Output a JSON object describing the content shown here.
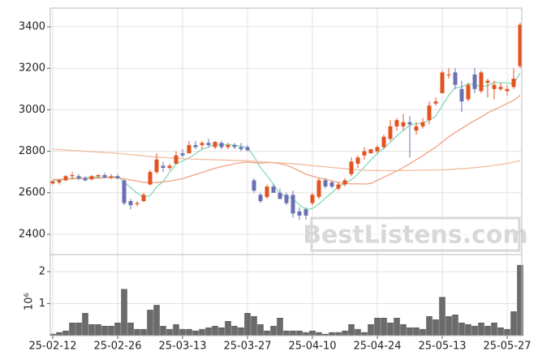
{
  "chart_data": [
    {
      "type": "candlestick",
      "open": [
        2645,
        2650,
        2660,
        2680,
        2680,
        2670,
        2665,
        2680,
        2685,
        2675,
        2680,
        2660,
        2560,
        2545,
        2560,
        2640,
        2700,
        2730,
        2720,
        2740,
        2790,
        2790,
        2830,
        2830,
        2840,
        2820,
        2840,
        2820,
        2830,
        2820,
        2820,
        2660,
        2590,
        2580,
        2630,
        2600,
        2590,
        2590,
        2510,
        2520,
        2550,
        2580,
        2660,
        2650,
        2620,
        2640,
        2690,
        2740,
        2780,
        2790,
        2800,
        2820,
        2860,
        2920,
        2920,
        2940,
        2900,
        2920,
        2950,
        3030,
        3080,
        3170,
        3180,
        3100,
        3050,
        3170,
        3090,
        3130,
        3100,
        3100,
        3090,
        3110,
        3210
      ],
      "high": [
        2660,
        2665,
        2685,
        2700,
        2690,
        2680,
        2685,
        2690,
        2695,
        2690,
        2690,
        2665,
        2570,
        2560,
        2600,
        2710,
        2790,
        2750,
        2740,
        2800,
        2810,
        2850,
        2850,
        2850,
        2860,
        2850,
        2850,
        2840,
        2840,
        2840,
        2830,
        2670,
        2600,
        2640,
        2640,
        2620,
        2600,
        2610,
        2530,
        2530,
        2600,
        2670,
        2670,
        2660,
        2650,
        2670,
        2770,
        2780,
        2820,
        2810,
        2830,
        2880,
        2950,
        2960,
        2980,
        2970,
        2940,
        2960,
        3040,
        3060,
        3190,
        3200,
        3200,
        3140,
        3130,
        3200,
        3190,
        3150,
        3140,
        3130,
        3120,
        3200,
        3420
      ],
      "low": [
        2640,
        2640,
        2655,
        2665,
        2660,
        2655,
        2660,
        2670,
        2670,
        2665,
        2665,
        2540,
        2520,
        2535,
        2555,
        2635,
        2690,
        2700,
        2710,
        2740,
        2770,
        2790,
        2810,
        2810,
        2820,
        2810,
        2810,
        2810,
        2810,
        2800,
        2800,
        2600,
        2550,
        2570,
        2600,
        2570,
        2540,
        2480,
        2470,
        2470,
        2540,
        2570,
        2620,
        2620,
        2610,
        2630,
        2680,
        2720,
        2760,
        2790,
        2790,
        2810,
        2850,
        2900,
        2900,
        2770,
        2880,
        2910,
        2930,
        3020,
        3080,
        3150,
        3100,
        2990,
        3040,
        3080,
        3080,
        3060,
        3050,
        3090,
        3070,
        3100,
        3200
      ],
      "close": [
        2655,
        2660,
        2680,
        2685,
        2670,
        2660,
        2680,
        2685,
        2675,
        2680,
        2670,
        2550,
        2540,
        2550,
        2590,
        2700,
        2760,
        2720,
        2730,
        2780,
        2780,
        2830,
        2820,
        2840,
        2830,
        2845,
        2820,
        2830,
        2820,
        2810,
        2805,
        2610,
        2560,
        2630,
        2600,
        2570,
        2550,
        2500,
        2490,
        2490,
        2590,
        2660,
        2630,
        2630,
        2640,
        2660,
        2750,
        2770,
        2800,
        2810,
        2820,
        2870,
        2920,
        2950,
        2940,
        2930,
        2920,
        2940,
        3020,
        3040,
        3180,
        3170,
        3120,
        3040,
        3120,
        3100,
        3180,
        3140,
        3120,
        3110,
        3100,
        3150,
        3410
      ],
      "up_color": "#e2531f",
      "down_color": "#6b70b3",
      "moving_averages": [
        {
          "color": "#86d8b8",
          "values": [
            2660,
            2660,
            2665,
            2670,
            2670,
            2671,
            2676,
            2676,
            2674,
            2676,
            2678,
            2652,
            2625,
            2598,
            2580,
            2586,
            2628,
            2654,
            2700,
            2738,
            2754,
            2768,
            2788,
            2810,
            2820,
            2833,
            2831,
            2833,
            2829,
            2825,
            2817,
            2775,
            2721,
            2683,
            2641,
            2594,
            2582,
            2570,
            2542,
            2520,
            2524,
            2546,
            2574,
            2600,
            2630,
            2644,
            2662,
            2690,
            2724,
            2758,
            2790,
            2814,
            2844,
            2874,
            2900,
            2926,
            2932,
            2936,
            2950,
            2970,
            3020,
            3070,
            3106,
            3110,
            3126,
            3120,
            3112,
            3116,
            3132,
            3130,
            3130,
            3124,
            3178
          ]
        },
        {
          "color": "#f0a282",
          "values": [
            2665,
            2665,
            2666,
            2667,
            2668,
            2669,
            2670,
            2671,
            2672,
            2673,
            2672,
            2668,
            2662,
            2656,
            2650,
            2648,
            2650,
            2653,
            2656,
            2662,
            2668,
            2678,
            2688,
            2698,
            2708,
            2718,
            2726,
            2733,
            2740,
            2745,
            2748,
            2745,
            2742,
            2745,
            2745,
            2740,
            2733,
            2720,
            2705,
            2690,
            2680,
            2672,
            2665,
            2657,
            2650,
            2645,
            2643,
            2643,
            2642,
            2645,
            2660,
            2675,
            2690,
            2705,
            2722,
            2740,
            2760,
            2778,
            2800,
            2820,
            2845,
            2870,
            2890,
            2910,
            2930,
            2948,
            2965,
            2985,
            3000,
            3015,
            3030,
            3045,
            3070
          ]
        },
        {
          "color": "#f2bc9f",
          "values": [
            2810,
            2808,
            2806,
            2804,
            2802,
            2800,
            2798,
            2796,
            2794,
            2792,
            2790,
            2787,
            2784,
            2781,
            2778,
            2775,
            2772,
            2770,
            2768,
            2766,
            2764,
            2763,
            2762,
            2761,
            2760,
            2759,
            2758,
            2757,
            2756,
            2755,
            2754,
            2752,
            2750,
            2748,
            2746,
            2744,
            2742,
            2740,
            2737,
            2734,
            2731,
            2728,
            2725,
            2722,
            2719,
            2716,
            2713,
            2711,
            2709,
            2708,
            2707,
            2707,
            2707,
            2707,
            2707,
            2708,
            2708,
            2709,
            2710,
            2710,
            2711,
            2712,
            2714,
            2716,
            2718,
            2721,
            2724,
            2728,
            2732,
            2736,
            2741,
            2747,
            2756
          ]
        }
      ],
      "ylim": [
        2302,
        3490
      ],
      "yticks": [
        2400,
        2600,
        2800,
        3000,
        3200,
        3400
      ],
      "grid": true,
      "watermark": "BestListens.com"
    },
    {
      "type": "bar",
      "categories": [
        "25-02-12",
        null,
        null,
        null,
        null,
        null,
        null,
        null,
        null,
        null,
        "25-02-26",
        null,
        null,
        null,
        null,
        null,
        null,
        null,
        null,
        null,
        "25-03-13",
        null,
        null,
        null,
        null,
        null,
        null,
        null,
        null,
        null,
        "25-03-27",
        null,
        null,
        null,
        null,
        null,
        null,
        null,
        null,
        null,
        "25-04-10",
        null,
        null,
        null,
        null,
        null,
        null,
        null,
        null,
        null,
        "25-04-24",
        null,
        null,
        null,
        null,
        null,
        null,
        null,
        null,
        null,
        "25-05-13",
        null,
        null,
        null,
        null,
        null,
        null,
        null,
        null,
        null,
        "25-05-27",
        null,
        null
      ],
      "values": [
        0.05,
        0.1,
        0.15,
        0.4,
        0.4,
        0.7,
        0.35,
        0.35,
        0.3,
        0.3,
        0.4,
        1.45,
        0.4,
        0.2,
        0.2,
        0.8,
        0.95,
        0.3,
        0.2,
        0.35,
        0.2,
        0.2,
        0.15,
        0.2,
        0.25,
        0.3,
        0.25,
        0.45,
        0.3,
        0.25,
        0.7,
        0.6,
        0.35,
        0.15,
        0.3,
        0.55,
        0.15,
        0.15,
        0.15,
        0.1,
        0.15,
        0.1,
        0.05,
        0.1,
        0.1,
        0.15,
        0.35,
        0.2,
        0.1,
        0.35,
        0.55,
        0.55,
        0.4,
        0.55,
        0.35,
        0.25,
        0.25,
        0.2,
        0.6,
        0.5,
        1.2,
        0.6,
        0.65,
        0.4,
        0.35,
        0.3,
        0.4,
        0.3,
        0.4,
        0.25,
        0.2,
        0.75,
        2.2
      ],
      "color": "#6b6b6b",
      "ylim": [
        0,
        2.53
      ],
      "yticks": [
        1,
        2
      ],
      "grid": true,
      "offset_label": "10⁶"
    }
  ]
}
